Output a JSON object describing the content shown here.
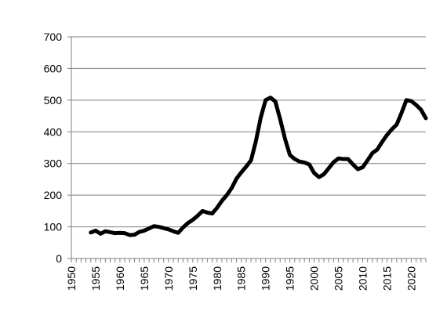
{
  "chart_data": {
    "type": "line",
    "title": "",
    "xlabel": "",
    "ylabel": "",
    "xlim": [
      1950,
      2023
    ],
    "ylim": [
      0,
      700
    ],
    "grid": true,
    "legend": "none",
    "y_ticks": [
      "0",
      "100",
      "200",
      "300",
      "400",
      "500",
      "600",
      "700"
    ],
    "x_ticks": [
      "1950",
      "1955",
      "1960",
      "1965",
      "1970",
      "1975",
      "1980",
      "1985",
      "1990",
      "1995",
      "2000",
      "2005",
      "2010",
      "2015",
      "2020"
    ],
    "series": [
      {
        "color": "#000000",
        "x": [
          1954,
          1955,
          1956,
          1957,
          1958,
          1959,
          1960,
          1961,
          1962,
          1963,
          1964,
          1965,
          1966,
          1967,
          1968,
          1969,
          1970,
          1971,
          1972,
          1973,
          1974,
          1975,
          1976,
          1977,
          1978,
          1979,
          1980,
          1981,
          1982,
          1983,
          1984,
          1985,
          1986,
          1987,
          1988,
          1989,
          1990,
          1991,
          1992,
          1993,
          1994,
          1995,
          1996,
          1997,
          1998,
          1999,
          2000,
          2001,
          2002,
          2003,
          2004,
          2005,
          2006,
          2007,
          2008,
          2009,
          2010,
          2011,
          2012,
          2013,
          2014,
          2015,
          2016,
          2017,
          2018,
          2019,
          2020,
          2021,
          2022,
          2023
        ],
        "y": [
          82,
          88,
          78,
          86,
          83,
          80,
          81,
          80,
          74,
          75,
          84,
          88,
          95,
          102,
          100,
          96,
          92,
          86,
          81,
          98,
          112,
          122,
          135,
          150,
          145,
          142,
          160,
          182,
          200,
          222,
          252,
          272,
          290,
          310,
          370,
          445,
          500,
          508,
          496,
          440,
          378,
          327,
          314,
          306,
          303,
          297,
          270,
          257,
          266,
          285,
          304,
          316,
          314,
          314,
          297,
          282,
          288,
          310,
          333,
          344,
          368,
          390,
          408,
          423,
          460,
          500,
          497,
          485,
          470,
          443
        ]
      }
    ]
  }
}
